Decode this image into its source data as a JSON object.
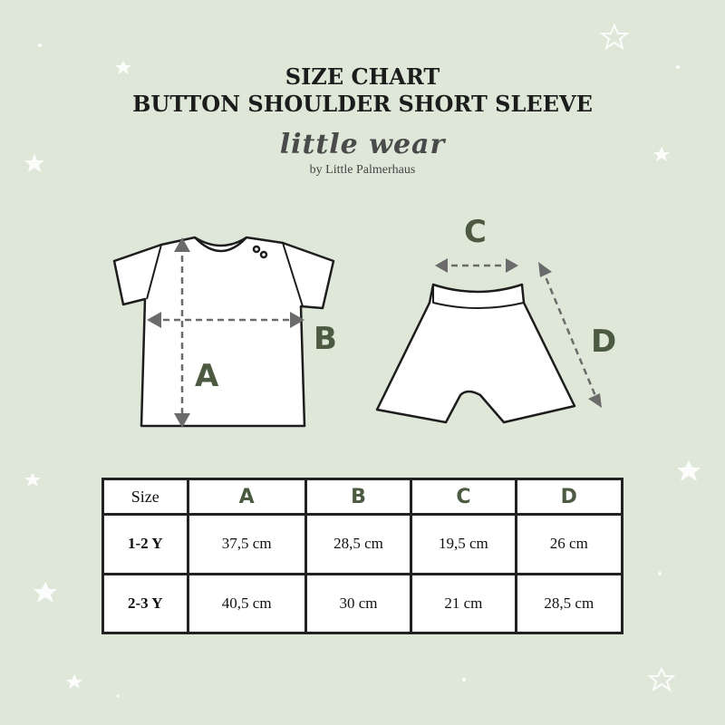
{
  "header": {
    "title_line1": "SIZE CHART",
    "title_line2": "BUTTON SHOULDER SHORT SLEEVE"
  },
  "logo": {
    "name": "little wear",
    "sub": "by Little Palmerhaus"
  },
  "diagram_labels": {
    "a": "A",
    "b": "B",
    "c": "C",
    "d": "D"
  },
  "colors": {
    "background": "#dfe8d8",
    "label": "#4c5a42",
    "arrow": "#6b6b6b"
  },
  "table": {
    "headers": [
      "Size",
      "A",
      "B",
      "C",
      "D"
    ],
    "rows": [
      [
        "1-2 Y",
        "37,5 cm",
        "28,5 cm",
        "19,5 cm",
        "26 cm"
      ],
      [
        "2-3 Y",
        "40,5 cm",
        "30 cm",
        "21 cm",
        "28,5 cm"
      ]
    ]
  }
}
